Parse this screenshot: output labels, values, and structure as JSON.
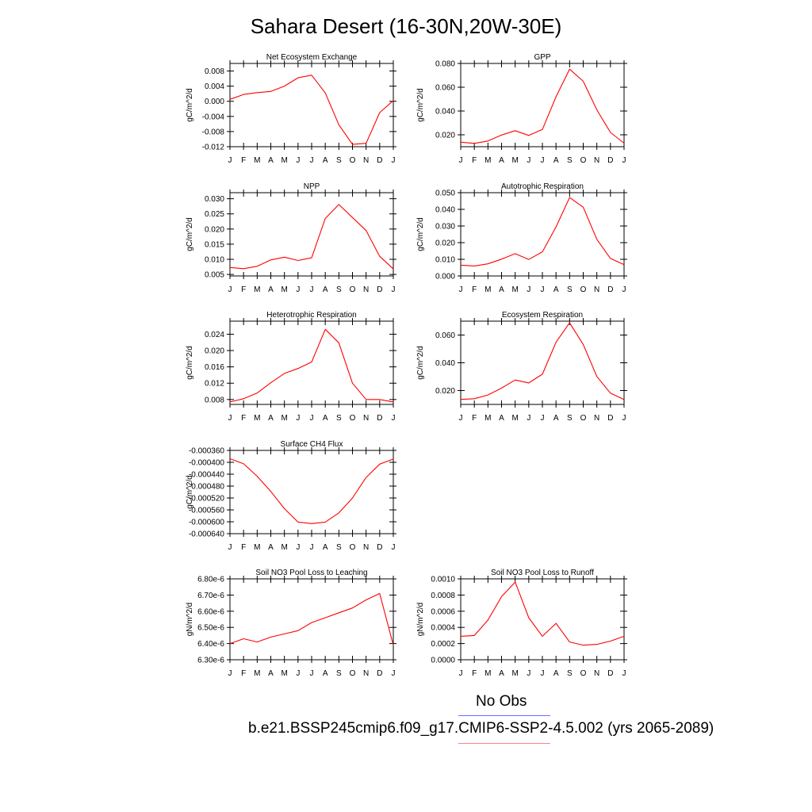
{
  "title": "Sahara Desert (16-30N,20W-30E)",
  "legend": {
    "obs_label": "No Obs",
    "obs_color": "#3a3aff",
    "model_label": "b.e21.BSSP245cmip6.f09_g17.CMIP6-SSP2-4.5.002 (yrs 2065-2089)",
    "model_color": "#ff0000"
  },
  "chart_data": [
    {
      "type": "line",
      "title": "Net Ecosystem Exchange",
      "ylabel": "gC/m^2/d",
      "xticks": [
        "J",
        "F",
        "M",
        "A",
        "M",
        "J",
        "J",
        "A",
        "S",
        "O",
        "N",
        "D",
        "J"
      ],
      "ylim": [
        -0.012,
        0.01
      ],
      "yticks": [
        0.008,
        0.004,
        0.0,
        -0.004,
        -0.008,
        -0.012
      ],
      "ytick_labels": [
        "0.008",
        "0.004",
        "0.000",
        "-0.004",
        "-0.008",
        "-0.012"
      ],
      "series": [
        {
          "color": "#ff0000",
          "values": [
            0.0005,
            0.0018,
            0.0023,
            0.0026,
            0.004,
            0.0062,
            0.0069,
            0.0022,
            -0.0062,
            -0.0114,
            -0.0111,
            -0.003,
            0.0002
          ]
        }
      ]
    },
    {
      "type": "line",
      "title": "GPP",
      "ylabel": "gC/m^2/d",
      "xticks": [
        "J",
        "F",
        "M",
        "A",
        "M",
        "J",
        "J",
        "A",
        "S",
        "O",
        "N",
        "D",
        "J"
      ],
      "ylim": [
        0.01,
        0.08
      ],
      "yticks": [
        0.08,
        0.06,
        0.04,
        0.02
      ],
      "ytick_labels": [
        "0.080",
        "0.060",
        "0.040",
        "0.020"
      ],
      "series": [
        {
          "color": "#ff0000",
          "values": [
            0.0138,
            0.0128,
            0.0148,
            0.0198,
            0.0235,
            0.0195,
            0.0245,
            0.052,
            0.0752,
            0.065,
            0.041,
            0.022,
            0.013
          ]
        }
      ]
    },
    {
      "type": "line",
      "title": "NPP",
      "ylabel": "gC/m^2/d",
      "xticks": [
        "J",
        "F",
        "M",
        "A",
        "M",
        "J",
        "J",
        "A",
        "S",
        "O",
        "N",
        "D",
        "J"
      ],
      "ylim": [
        0.0045,
        0.032
      ],
      "yticks": [
        0.03,
        0.025,
        0.02,
        0.015,
        0.01,
        0.005
      ],
      "ytick_labels": [
        "0.030",
        "0.025",
        "0.020",
        "0.015",
        "0.010",
        "0.005"
      ],
      "series": [
        {
          "color": "#ff0000",
          "values": [
            0.0073,
            0.0069,
            0.0077,
            0.0098,
            0.0107,
            0.0096,
            0.0105,
            0.0235,
            0.0281,
            0.0238,
            0.0195,
            0.011,
            0.0068
          ]
        }
      ]
    },
    {
      "type": "line",
      "title": "Autotrophic Respiration",
      "ylabel": "gC/m^2/d",
      "xticks": [
        "J",
        "F",
        "M",
        "A",
        "M",
        "J",
        "J",
        "A",
        "S",
        "O",
        "N",
        "D",
        "J"
      ],
      "ylim": [
        0.0,
        0.05
      ],
      "yticks": [
        0.05,
        0.04,
        0.03,
        0.02,
        0.01,
        0.0
      ],
      "ytick_labels": [
        "0.050",
        "0.040",
        "0.030",
        "0.020",
        "0.010",
        "0.000"
      ],
      "series": [
        {
          "color": "#ff0000",
          "values": [
            0.0065,
            0.006,
            0.0073,
            0.0101,
            0.0134,
            0.0099,
            0.0145,
            0.0295,
            0.0471,
            0.0413,
            0.022,
            0.0105,
            0.0068
          ]
        }
      ]
    },
    {
      "type": "line",
      "title": "Heterotrophic Respiration",
      "ylabel": "gC/m^2/d",
      "xticks": [
        "J",
        "F",
        "M",
        "A",
        "M",
        "J",
        "J",
        "A",
        "S",
        "O",
        "N",
        "D",
        "J"
      ],
      "ylim": [
        0.0068,
        0.0272
      ],
      "yticks": [
        0.024,
        0.02,
        0.016,
        0.012,
        0.008
      ],
      "ytick_labels": [
        "0.024",
        "0.020",
        "0.016",
        "0.012",
        "0.008"
      ],
      "series": [
        {
          "color": "#ff0000",
          "values": [
            0.0074,
            0.0082,
            0.0096,
            0.0121,
            0.0144,
            0.0156,
            0.0172,
            0.0252,
            0.0219,
            0.012,
            0.008,
            0.008,
            0.0074
          ]
        }
      ]
    },
    {
      "type": "line",
      "title": "Ecosystem Respiration",
      "ylabel": "gC/m^2/d",
      "xticks": [
        "J",
        "F",
        "M",
        "A",
        "M",
        "J",
        "J",
        "A",
        "S",
        "O",
        "N",
        "D",
        "J"
      ],
      "ylim": [
        0.01,
        0.07
      ],
      "yticks": [
        0.06,
        0.04,
        0.02
      ],
      "ytick_labels": [
        "0.060",
        "0.040",
        "0.020"
      ],
      "series": [
        {
          "color": "#ff0000",
          "values": [
            0.0136,
            0.0141,
            0.0168,
            0.0218,
            0.0276,
            0.0255,
            0.0318,
            0.0548,
            0.0688,
            0.0532,
            0.0301,
            0.0181,
            0.0135
          ]
        }
      ]
    },
    {
      "type": "line",
      "title": "Surface CH4 Flux",
      "ylabel": "gC/m^2/d",
      "xticks": [
        "J",
        "F",
        "M",
        "A",
        "M",
        "J",
        "J",
        "A",
        "S",
        "O",
        "N",
        "D",
        "J"
      ],
      "ylim": [
        -0.00064,
        -0.00036
      ],
      "yticks": [
        -0.00036,
        -0.0004,
        -0.00044,
        -0.00048,
        -0.00052,
        -0.00056,
        -0.0006,
        -0.00064
      ],
      "ytick_labels": [
        "-0.000360",
        "-0.000400",
        "-0.000440",
        "-0.000480",
        "-0.000520",
        "-0.000560",
        "-0.000600",
        "-0.000640"
      ],
      "series": [
        {
          "color": "#ff0000",
          "values": [
            -0.000388,
            -0.000405,
            -0.000447,
            -0.000498,
            -0.000556,
            -0.000601,
            -0.000606,
            -0.000601,
            -0.00057,
            -0.00052,
            -0.000451,
            -0.000406,
            -0.000389
          ]
        }
      ]
    },
    {
      "type": "line",
      "title": "Soil NO3 Pool Loss to Leaching",
      "ylabel": "gN/m^2/d",
      "xticks": [
        "J",
        "F",
        "M",
        "A",
        "M",
        "J",
        "J",
        "A",
        "S",
        "O",
        "N",
        "D",
        "J"
      ],
      "ylim": [
        6.3e-06,
        6.8e-06
      ],
      "yticks": [
        6.8e-06,
        6.7e-06,
        6.6e-06,
        6.5e-06,
        6.4e-06,
        6.3e-06
      ],
      "ytick_labels": [
        "6.80e-6",
        "6.70e-6",
        "6.60e-6",
        "6.50e-6",
        "6.40e-6",
        "6.30e-6"
      ],
      "series": [
        {
          "color": "#ff0000",
          "values": [
            6.4e-06,
            6.43e-06,
            6.41e-06,
            6.44e-06,
            6.46e-06,
            6.48e-06,
            6.53e-06,
            6.56e-06,
            6.59e-06,
            6.62e-06,
            6.67e-06,
            6.71e-06,
            6.39e-06
          ]
        }
      ]
    },
    {
      "type": "line",
      "title": "Soil NO3 Pool Loss to Runoff",
      "ylabel": "gN/m^2/d",
      "xticks": [
        "J",
        "F",
        "M",
        "A",
        "M",
        "J",
        "J",
        "A",
        "S",
        "O",
        "N",
        "D",
        "J"
      ],
      "ylim": [
        0.0,
        0.001
      ],
      "yticks": [
        0.001,
        0.0008,
        0.0006,
        0.0004,
        0.0002,
        0.0
      ],
      "ytick_labels": [
        "0.0010",
        "0.0008",
        "0.0006",
        "0.0004",
        "0.0002",
        "0.0000"
      ],
      "series": [
        {
          "color": "#ff0000",
          "values": [
            0.00029,
            0.0003,
            0.00049,
            0.00078,
            0.00096,
            0.00052,
            0.00029,
            0.00045,
            0.00022,
            0.00018,
            0.00019,
            0.00023,
            0.00029
          ]
        }
      ]
    }
  ]
}
